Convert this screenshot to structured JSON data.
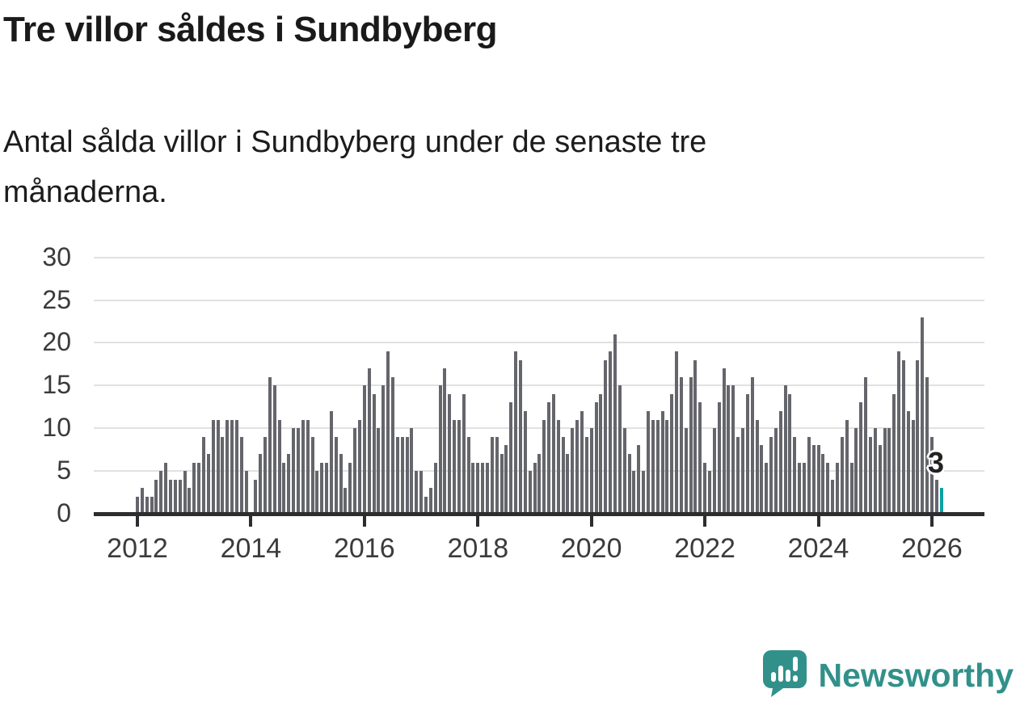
{
  "title": "Tre villor såldes i Sundbyberg",
  "subtitle": "Antal sålda villor i Sundbyberg under de senaste tre månaderna.",
  "subtitle_line1": "Antal sålda villor i Sundbyberg under de senaste tre",
  "subtitle_line2": "månaderna.",
  "annotation_label": "3",
  "logo": {
    "text": "Newsworthy",
    "icon": "newsworthy-speech-bubble-chart-icon",
    "color": "#31918a"
  },
  "chart_data": {
    "type": "bar",
    "title": "Tre villor såldes i Sundbyberg",
    "xlabel": "",
    "ylabel": "",
    "ylim": [
      0,
      30
    ],
    "y_ticks": [
      0,
      5,
      10,
      15,
      20,
      25,
      30
    ],
    "x_tick_labels": [
      "2012",
      "2014",
      "2016",
      "2018",
      "2020",
      "2022",
      "2024",
      "2026"
    ],
    "grid": "horizontal",
    "legend": "none",
    "start_month": "2012-01",
    "end_month": "2026-03",
    "highlight_last_bar": true,
    "last_bar_label": "3",
    "colors": {
      "bar": "#65656c",
      "highlight": "#0da2a4",
      "gridline": "#e1e1e1",
      "axis": "#2d2d30"
    },
    "series": [
      {
        "year": 2012,
        "values": [
          2,
          3,
          2,
          2,
          4,
          5,
          6,
          4,
          4,
          4,
          5,
          3
        ]
      },
      {
        "year": 2013,
        "values": [
          6,
          6,
          9,
          7,
          11,
          11,
          9,
          11,
          11,
          11,
          9,
          5
        ]
      },
      {
        "year": 2014,
        "values": [
          0,
          4,
          7,
          9,
          16,
          15,
          11,
          6,
          7,
          10,
          10,
          11
        ]
      },
      {
        "year": 2015,
        "values": [
          11,
          9,
          5,
          6,
          6,
          12,
          9,
          7,
          3,
          6,
          10,
          11
        ]
      },
      {
        "year": 2016,
        "values": [
          15,
          17,
          14,
          10,
          15,
          19,
          16,
          9,
          9,
          9,
          10,
          5
        ]
      },
      {
        "year": 2017,
        "values": [
          5,
          2,
          3,
          6,
          15,
          17,
          14,
          11,
          11,
          14,
          9,
          6
        ]
      },
      {
        "year": 2018,
        "values": [
          6,
          6,
          6,
          9,
          9,
          7,
          8,
          13,
          19,
          18,
          12,
          5
        ]
      },
      {
        "year": 2019,
        "values": [
          6,
          7,
          11,
          13,
          14,
          11,
          9,
          7,
          10,
          11,
          12,
          9
        ]
      },
      {
        "year": 2020,
        "values": [
          10,
          13,
          14,
          18,
          19,
          21,
          15,
          10,
          7,
          5,
          8,
          5
        ]
      },
      {
        "year": 2021,
        "values": [
          12,
          11,
          11,
          12,
          11,
          14,
          19,
          16,
          10,
          16,
          18,
          13
        ]
      },
      {
        "year": 2022,
        "values": [
          6,
          5,
          10,
          13,
          17,
          15,
          15,
          9,
          10,
          14,
          16,
          11
        ]
      },
      {
        "year": 2023,
        "values": [
          8,
          6,
          9,
          10,
          12,
          15,
          14,
          9,
          6,
          6,
          9,
          8
        ]
      },
      {
        "year": 2024,
        "values": [
          8,
          7,
          6,
          4,
          6,
          9,
          11,
          6,
          10,
          13,
          16,
          9
        ]
      },
      {
        "year": 2025,
        "values": [
          10,
          8,
          10,
          10,
          14,
          19,
          18,
          12,
          11,
          18,
          23,
          16
        ]
      },
      {
        "year": 2026,
        "values": [
          9,
          4,
          3
        ]
      }
    ]
  }
}
